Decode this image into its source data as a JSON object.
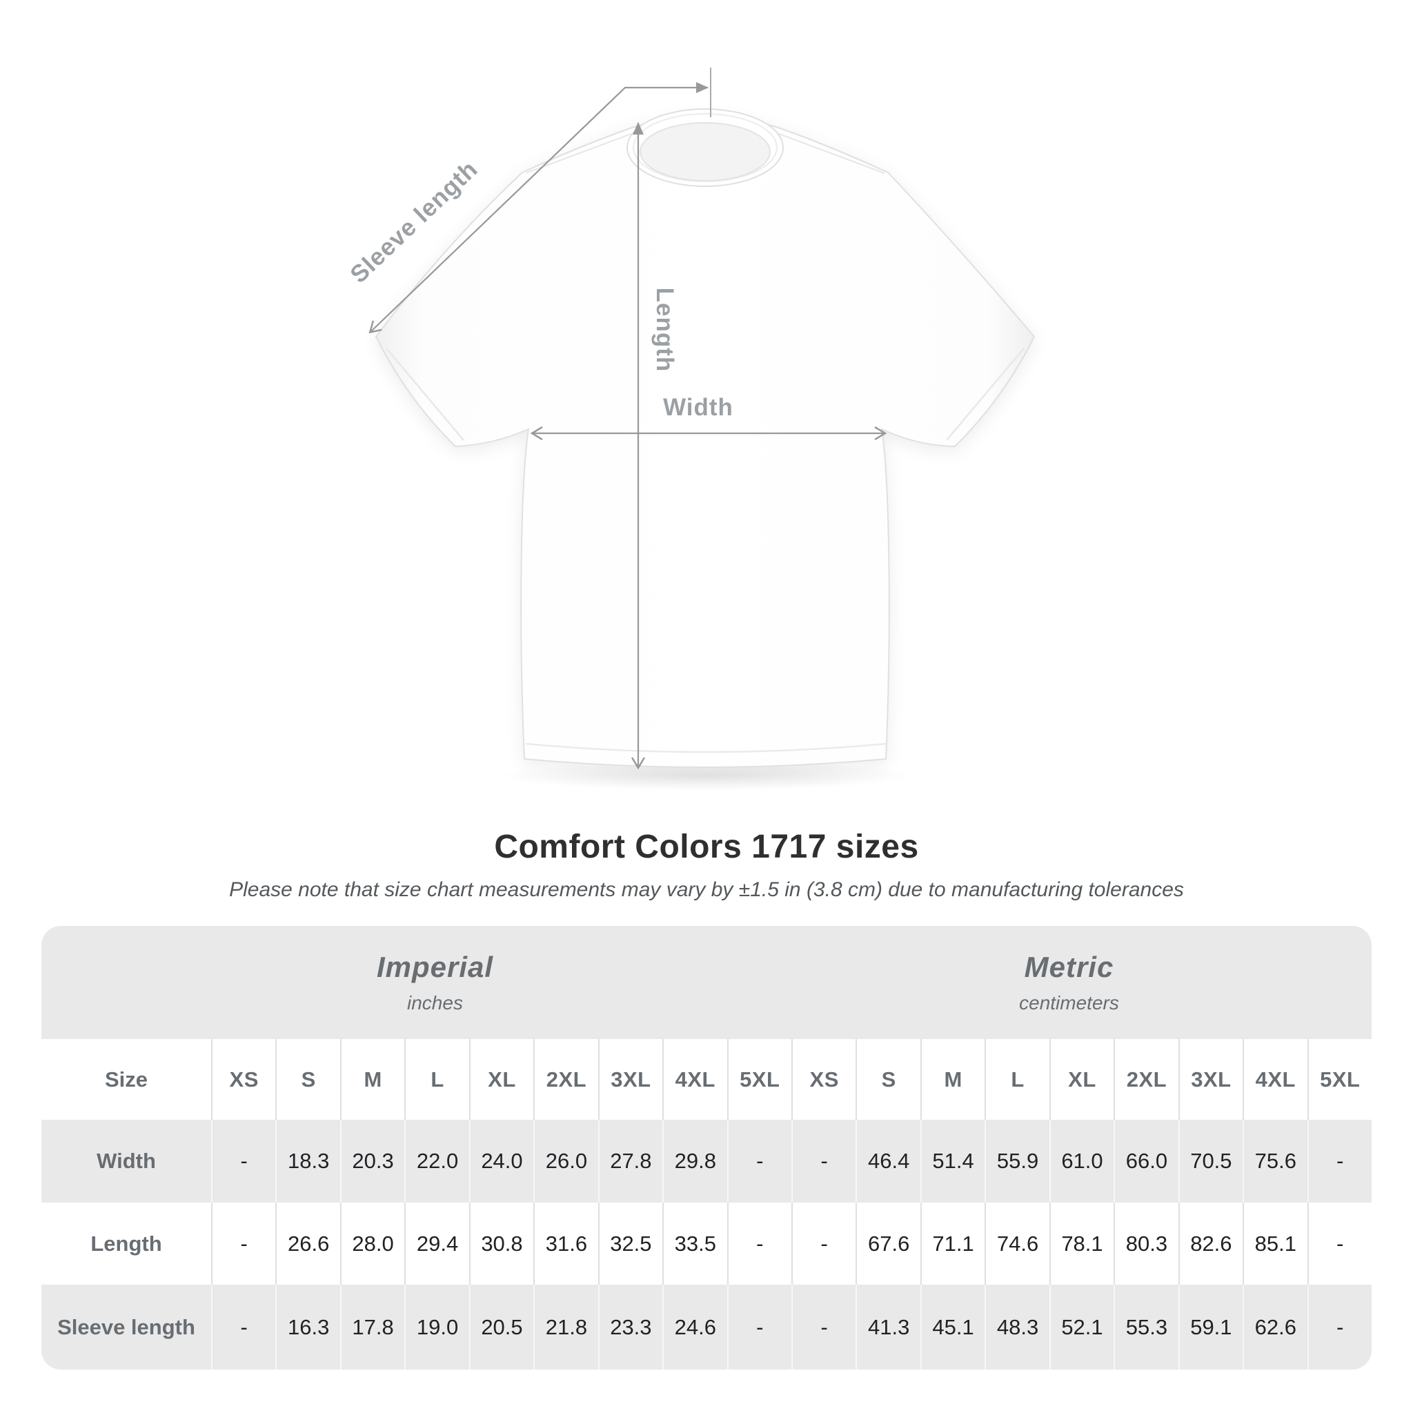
{
  "diagram": {
    "labels": {
      "sleeve_length": "Sleeve length",
      "length": "Length",
      "width": "Width"
    },
    "annotation_color": "#97999b",
    "label_color": "#9aa0a4"
  },
  "heading": {
    "title": "Comfort Colors 1717 sizes",
    "subtitle": "Please note that size chart measurements may vary by ±1.5 in (3.8 cm) due to manufacturing tolerances"
  },
  "size_chart": {
    "corner_label": "Size",
    "groups": [
      {
        "label": "Imperial",
        "sublabel": "inches"
      },
      {
        "label": "Metric",
        "sublabel": "centimeters"
      }
    ],
    "sizes": [
      "XS",
      "S",
      "M",
      "L",
      "XL",
      "2XL",
      "3XL",
      "4XL",
      "5XL"
    ],
    "rows": [
      {
        "label": "Width",
        "imperial": [
          "-",
          "18.3",
          "20.3",
          "22.0",
          "24.0",
          "26.0",
          "27.8",
          "29.8",
          "-"
        ],
        "metric": [
          "-",
          "46.4",
          "51.4",
          "55.9",
          "61.0",
          "66.0",
          "70.5",
          "75.6",
          "-"
        ]
      },
      {
        "label": "Length",
        "imperial": [
          "-",
          "26.6",
          "28.0",
          "29.4",
          "30.8",
          "31.6",
          "32.5",
          "33.5",
          "-"
        ],
        "metric": [
          "-",
          "67.6",
          "71.1",
          "74.6",
          "78.1",
          "80.3",
          "82.6",
          "85.1",
          "-"
        ]
      },
      {
        "label": "Sleeve length",
        "imperial": [
          "-",
          "16.3",
          "17.8",
          "19.0",
          "20.5",
          "21.8",
          "23.3",
          "24.6",
          "-"
        ],
        "metric": [
          "-",
          "41.3",
          "45.1",
          "48.3",
          "52.1",
          "55.3",
          "59.1",
          "62.6",
          "-"
        ]
      }
    ],
    "colors": {
      "band_bg": "#e9e9e9",
      "row_alt_bg": "#e9e9e9",
      "header_text": "#686d72",
      "value_text": "#1f2124",
      "separator": "#dfdfdf"
    }
  }
}
